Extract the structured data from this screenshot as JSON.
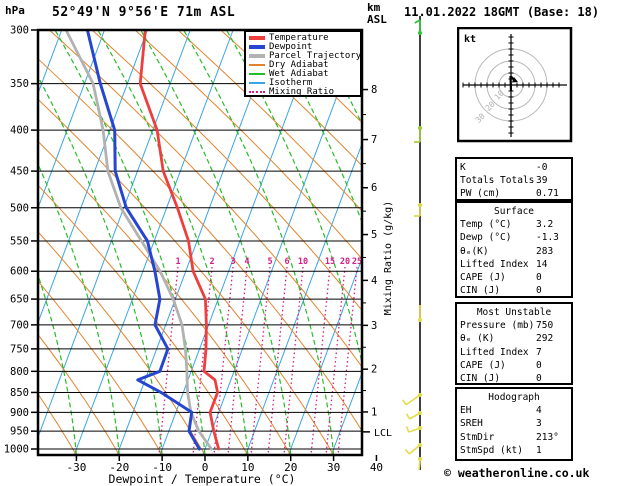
{
  "header": {
    "pressure_unit": "hPa",
    "station": "52°49'N 9°56'E 71m ASL",
    "altitude_unit_line1": "km",
    "altitude_unit_line2": "ASL",
    "datetime": "11.01.2022 18GMT (Base: 18)"
  },
  "legend": {
    "items": [
      {
        "label": "Temperature",
        "color": "#ee3e3e",
        "thick": true,
        "dotted": false
      },
      {
        "label": "Dewpoint",
        "color": "#2646d2",
        "thick": true,
        "dotted": false
      },
      {
        "label": "Parcel Trajectory",
        "color": "#b2b2b2",
        "thick": true,
        "dotted": false
      },
      {
        "label": "Dry Adiabat",
        "color": "#e2842e",
        "thick": false,
        "dotted": false
      },
      {
        "label": "Wet Adiabat",
        "color": "#28bc28",
        "thick": false,
        "dotted": false
      },
      {
        "label": "Isotherm",
        "color": "#3aa6e6",
        "thick": false,
        "dotted": false
      },
      {
        "label": "Mixing Ratio",
        "color": "#d41f86",
        "thick": false,
        "dotted": true
      }
    ]
  },
  "chart_data": {
    "type": "line",
    "title": "Skew-T log-P sounding",
    "x_axis": {
      "label": "Dewpoint / Temperature (°C)",
      "ticks": [
        -30,
        -20,
        -10,
        0,
        10,
        20,
        30,
        40
      ]
    },
    "y_axis": {
      "unit": "hPa",
      "scale": "log-pressure",
      "ticks": [
        300,
        350,
        400,
        450,
        500,
        550,
        600,
        650,
        700,
        750,
        800,
        850,
        900,
        950,
        1000
      ]
    },
    "altitude_axis": {
      "unit": "km ASL",
      "ticks": [
        8,
        7,
        6,
        5,
        4,
        3,
        2,
        1
      ],
      "lcl_label": "LCL",
      "lcl_pressure_mb": 952
    },
    "mixing_ratio": {
      "label": "Mixing Ratio (g/kg)",
      "values": [
        1,
        2,
        3,
        4,
        5,
        6,
        10,
        15,
        20,
        25
      ]
    },
    "pressure_levels_mb": [
      300,
      350,
      400,
      450,
      500,
      550,
      600,
      650,
      700,
      750,
      800,
      820,
      850,
      900,
      950,
      1000
    ],
    "series": [
      {
        "name": "Temperature",
        "color": "#ee3e3e",
        "values_c": [
          -50.5,
          -47,
          -39,
          -34,
          -27.5,
          -22,
          -18.3,
          -13,
          -10.5,
          -8.5,
          -7,
          -3.7,
          -2,
          -2,
          0.5,
          3.2
        ]
      },
      {
        "name": "Dewpoint",
        "color": "#2646d2",
        "values_c": [
          -64,
          -56.3,
          -48.9,
          -45.2,
          -39.4,
          -31.6,
          -27.2,
          -23.6,
          -22.5,
          -17.4,
          -17.3,
          -21.7,
          -15.2,
          -6.3,
          -5.3,
          -1.3
        ]
      },
      {
        "name": "Parcel Trajectory",
        "color": "#b2b2b2",
        "values_c": [
          -69,
          -58,
          -51.6,
          -46.9,
          -40.7,
          -33,
          -26,
          -20.5,
          -16.2,
          -13.3,
          -11,
          -10.2,
          -9,
          -6.5,
          -3,
          1.5
        ]
      }
    ],
    "background": {
      "isotherm_color": "#3aa6e6",
      "dry_adiabat_color": "#e2842e",
      "wet_adiabat_color": "#28bc28",
      "mixing_ratio_color": "#d41f86",
      "isotherm_step_c": 10
    }
  },
  "wind_profile": {
    "unit": "kt",
    "barbs": [
      {
        "y": 33,
        "color": "#2fc42f",
        "angle": -90,
        "len": 13,
        "feather": 150
      },
      {
        "y": 128,
        "color": "#9cc832",
        "angle": 90,
        "len": 14,
        "feather": 180
      },
      {
        "y": 205,
        "color": "#dcd545",
        "angle": 90,
        "len": 11,
        "feather": 180
      },
      {
        "y": 320,
        "color": "#e3dc4a",
        "angle": -90,
        "len": 15,
        "feather": null
      },
      {
        "y": 395,
        "color": "#e3dc4a",
        "angle": 145,
        "len": 17,
        "feather": 235
      },
      {
        "y": 413,
        "color": "#e3dc4a",
        "angle": 150,
        "len": 12,
        "feather": 240
      },
      {
        "y": 428,
        "color": "#e3dc4a",
        "angle": 160,
        "len": 12,
        "feather": 250
      },
      {
        "y": 445,
        "color": "#e3dc4a",
        "angle": 140,
        "len": 14,
        "feather": 230
      },
      {
        "y": 459,
        "color": "#e3dc4a",
        "angle": 95,
        "len": 11,
        "feather": null
      }
    ]
  },
  "hodograph_panel": {
    "unit_label": "kt",
    "ring_labels": [
      "10",
      "20",
      "30"
    ]
  },
  "info_panel": {
    "sections": [
      {
        "title": null,
        "rows": [
          [
            "K",
            "-0"
          ],
          [
            "Totals Totals",
            "39"
          ],
          [
            "PW (cm)",
            "0.71"
          ]
        ]
      },
      {
        "title": "Surface",
        "rows": [
          [
            "Temp (°C)",
            "3.2"
          ],
          [
            "Dewp (°C)",
            "-1.3"
          ],
          [
            "θₑ(K)",
            "283"
          ],
          [
            "Lifted Index",
            "14"
          ],
          [
            "CAPE (J)",
            "0"
          ],
          [
            "CIN (J)",
            "0"
          ]
        ]
      },
      {
        "title": "Most Unstable",
        "rows": [
          [
            "Pressure (mb)",
            "750"
          ],
          [
            "θₑ (K)",
            "292"
          ],
          [
            "Lifted Index",
            "7"
          ],
          [
            "CAPE (J)",
            "0"
          ],
          [
            "CIN (J)",
            "0"
          ]
        ]
      },
      {
        "title": "Hodograph",
        "rows": [
          [
            "EH",
            "4"
          ],
          [
            "SREH",
            "3"
          ],
          [
            "StmDir",
            "213°"
          ],
          [
            "StmSpd (kt)",
            "1"
          ]
        ]
      }
    ]
  },
  "footer": {
    "credit": "© weatheronline.co.uk"
  }
}
